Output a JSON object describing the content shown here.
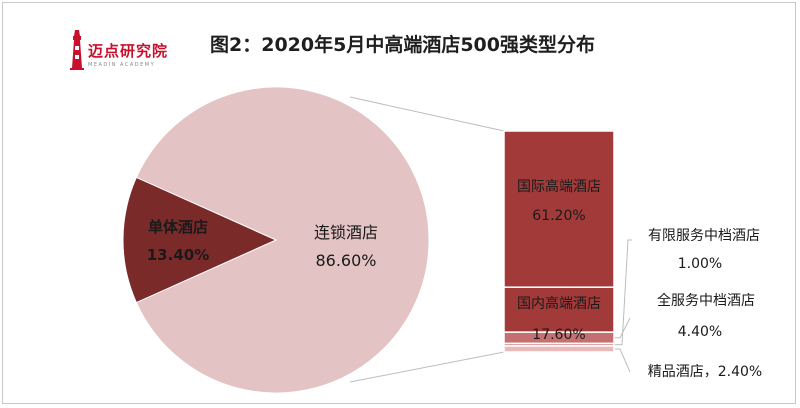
{
  "logo": {
    "text": "迈点研究院",
    "subtext": "MEADIN ACADEMY"
  },
  "chart_data": {
    "type": "bar-of-pie",
    "title": "图2：2020年5月中高端酒店500强类型分布",
    "pie": [
      {
        "name": "单体酒店",
        "value": 13.4,
        "label": "13.40%",
        "color": "#7b2a2a"
      },
      {
        "name": "连锁酒店",
        "value": 86.6,
        "label": "86.60%",
        "color": "#e3c3c3"
      }
    ],
    "bar": [
      {
        "name": "国际高端酒店",
        "value": 61.2,
        "label": "61.20%",
        "color": "#a33a3a"
      },
      {
        "name": "国内高端酒店",
        "value": 17.6,
        "label": "17.60%",
        "color": "#a33a3a"
      },
      {
        "name": "全服务中档酒店",
        "value": 4.4,
        "label": "4.40%",
        "color": "#c47070"
      },
      {
        "name": "有限服务中档酒店",
        "value": 1.0,
        "label": "1.00%",
        "color": "#d99a9a"
      },
      {
        "name": "精品酒店",
        "value": 2.4,
        "label": "2.40%",
        "color": "#e8baba"
      }
    ],
    "external_labels": {
      "limited": {
        "name": "有限服务中档酒店",
        "value": "1.00%"
      },
      "full": {
        "name": "全服务中档酒店",
        "value": "4.40%"
      },
      "boutique": "精品酒店，2.40%"
    }
  }
}
